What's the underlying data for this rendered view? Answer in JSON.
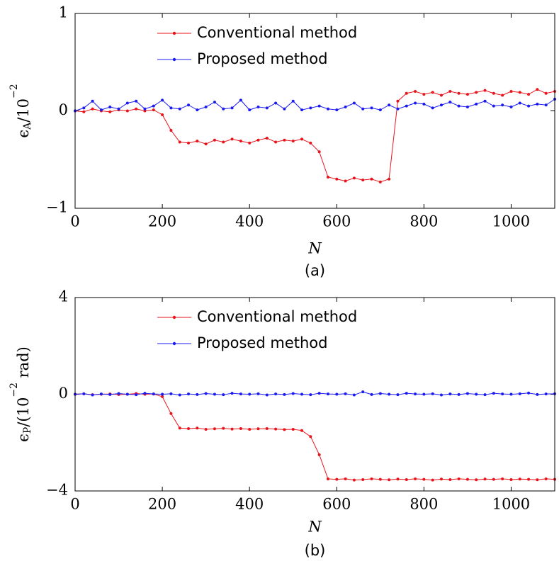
{
  "chart_data": [
    {
      "type": "line",
      "caption": "(a)",
      "xlabel": "N",
      "ylabel": [
        {
          "text": "ϵ",
          "shift": "normal"
        },
        {
          "text": "A",
          "shift": "sub"
        },
        {
          "text": "/10",
          "shift": "normal"
        },
        {
          "text": "−2",
          "shift": "super"
        }
      ],
      "xlim": [
        0,
        1100
      ],
      "ylim": [
        -1,
        1
      ],
      "xticks": [
        0,
        200,
        400,
        600,
        800,
        1000
      ],
      "yticks": [
        {
          "value": -1,
          "label": "−1"
        },
        0,
        1
      ],
      "legend": "upper center",
      "x": [
        0,
        20,
        40,
        60,
        80,
        100,
        120,
        140,
        160,
        180,
        200,
        220,
        240,
        260,
        280,
        300,
        320,
        340,
        360,
        380,
        400,
        420,
        440,
        460,
        480,
        500,
        520,
        540,
        560,
        580,
        600,
        620,
        640,
        660,
        680,
        700,
        720,
        740,
        760,
        780,
        800,
        820,
        840,
        860,
        880,
        900,
        920,
        940,
        960,
        980,
        1000,
        1020,
        1040,
        1060,
        1080,
        1100
      ],
      "series": [
        {
          "name": "Conventional method",
          "color": "#e8141c",
          "values": [
            0,
            -0.01,
            0.02,
            0,
            -0.01,
            0.01,
            0,
            0.02,
            0,
            0.01,
            -0.04,
            -0.2,
            -0.32,
            -0.33,
            -0.31,
            -0.34,
            -0.3,
            -0.32,
            -0.29,
            -0.31,
            -0.33,
            -0.3,
            -0.28,
            -0.32,
            -0.3,
            -0.31,
            -0.29,
            -0.33,
            -0.42,
            -0.68,
            -0.7,
            -0.72,
            -0.69,
            -0.71,
            -0.7,
            -0.73,
            -0.7,
            0.1,
            0.18,
            0.2,
            0.17,
            0.19,
            0.16,
            0.2,
            0.18,
            0.17,
            0.19,
            0.21,
            0.18,
            0.16,
            0.2,
            0.19,
            0.17,
            0.22,
            0.18,
            0.2
          ]
        },
        {
          "name": "Proposed method",
          "color": "#1c1cf0",
          "values": [
            0,
            0.03,
            0.1,
            0.01,
            0.04,
            0.02,
            0.08,
            0.1,
            0.02,
            0.05,
            0.11,
            0.03,
            0.02,
            0.06,
            0.01,
            0.04,
            0.09,
            0.02,
            0.03,
            0.11,
            0.01,
            0.04,
            0.03,
            0.08,
            0.02,
            0.1,
            0.01,
            0.03,
            0.05,
            0.02,
            0.01,
            0.04,
            0.08,
            0.02,
            0.03,
            0.01,
            0.06,
            0.02,
            0.05,
            0.08,
            0.07,
            0.03,
            0.06,
            0.09,
            0.05,
            0.04,
            0.07,
            0.1,
            0.05,
            0.06,
            0.04,
            0.08,
            0.05,
            0.07,
            0.06,
            0.12
          ]
        }
      ]
    },
    {
      "type": "line",
      "caption": "(b)",
      "xlabel": "N",
      "ylabel": [
        {
          "text": "ϵ",
          "shift": "normal"
        },
        {
          "text": "P",
          "shift": "sub"
        },
        {
          "text": "/(10",
          "shift": "normal"
        },
        {
          "text": "−2",
          "shift": "super"
        },
        {
          "text": " rad)",
          "shift": "normal"
        }
      ],
      "xlim": [
        0,
        1100
      ],
      "ylim": [
        -4,
        4
      ],
      "xticks": [
        0,
        200,
        400,
        600,
        800,
        1000
      ],
      "yticks": [
        {
          "value": -4,
          "label": "−4"
        },
        0,
        4
      ],
      "legend": "upper center",
      "x": [
        0,
        20,
        40,
        60,
        80,
        100,
        120,
        140,
        160,
        180,
        200,
        220,
        240,
        260,
        280,
        300,
        320,
        340,
        360,
        380,
        400,
        420,
        440,
        460,
        480,
        500,
        520,
        540,
        560,
        580,
        600,
        620,
        640,
        660,
        680,
        700,
        720,
        740,
        760,
        780,
        800,
        820,
        840,
        860,
        880,
        900,
        920,
        940,
        960,
        980,
        1000,
        1020,
        1040,
        1060,
        1080,
        1100
      ],
      "series": [
        {
          "name": "Conventional method",
          "color": "#e8141c",
          "values": [
            0,
            0.02,
            -0.02,
            0,
            0.01,
            -0.01,
            0,
            0.03,
            0,
            0.01,
            -0.1,
            -0.8,
            -1.4,
            -1.42,
            -1.4,
            -1.45,
            -1.43,
            -1.41,
            -1.44,
            -1.42,
            -1.45,
            -1.43,
            -1.42,
            -1.44,
            -1.46,
            -1.45,
            -1.5,
            -1.75,
            -2.5,
            -3.5,
            -3.52,
            -3.5,
            -3.55,
            -3.53,
            -3.5,
            -3.52,
            -3.54,
            -3.51,
            -3.53,
            -3.5,
            -3.52,
            -3.55,
            -3.51,
            -3.53,
            -3.5,
            -3.52,
            -3.54,
            -3.51,
            -3.52,
            -3.5,
            -3.53,
            -3.51,
            -3.52,
            -3.54,
            -3.5,
            -3.52
          ]
        },
        {
          "name": "Proposed method",
          "color": "#1c1cf0",
          "values": [
            0,
            0.02,
            -0.03,
            0.01,
            -0.01,
            0.03,
            0,
            -0.02,
            0.04,
            0.01,
            0,
            0.02,
            -0.03,
            0.01,
            -0.01,
            0.03,
            0,
            -0.02,
            0.04,
            0.01,
            0,
            0.02,
            -0.03,
            0.01,
            -0.01,
            0.03,
            0,
            -0.02,
            0.04,
            0.01,
            0,
            0.02,
            -0.03,
            0.1,
            -0.01,
            0.03,
            0,
            -0.02,
            0.04,
            0.01,
            0,
            0.02,
            -0.03,
            0.01,
            -0.01,
            0.03,
            0,
            -0.02,
            0.04,
            0.01,
            0,
            0.02,
            0.05,
            -0.01,
            0.01,
            0.02
          ]
        }
      ]
    }
  ]
}
